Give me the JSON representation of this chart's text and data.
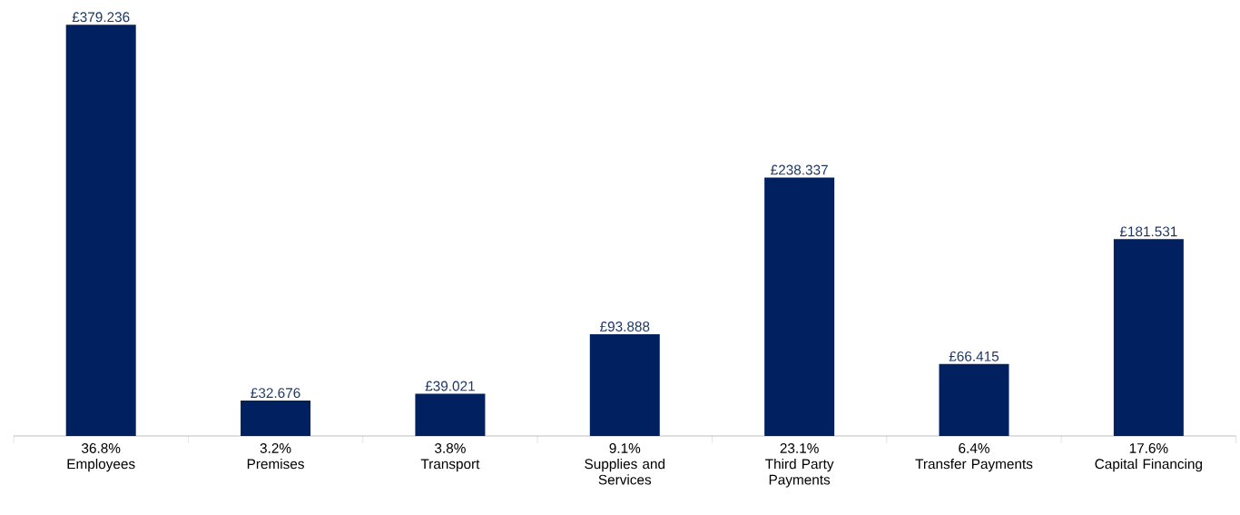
{
  "chart_data": {
    "type": "bar",
    "categories": [
      "36.8%\nEmployees",
      "3.2%\nPremises",
      "3.8%\nTransport",
      "9.1%\nSupplies and\nServices",
      "23.1%\nThird Party\nPayments",
      "6.4%\nTransfer Payments",
      "17.6%\nCapital Financing"
    ],
    "values": [
      379.236,
      32.676,
      39.021,
      93.888,
      238.337,
      66.415,
      181.531
    ],
    "value_labels": [
      "£379.236",
      "£32.676",
      "£39.021",
      "£93.888",
      "£238.337",
      "£66.415",
      "£181.531"
    ],
    "color": "#002060"
  }
}
